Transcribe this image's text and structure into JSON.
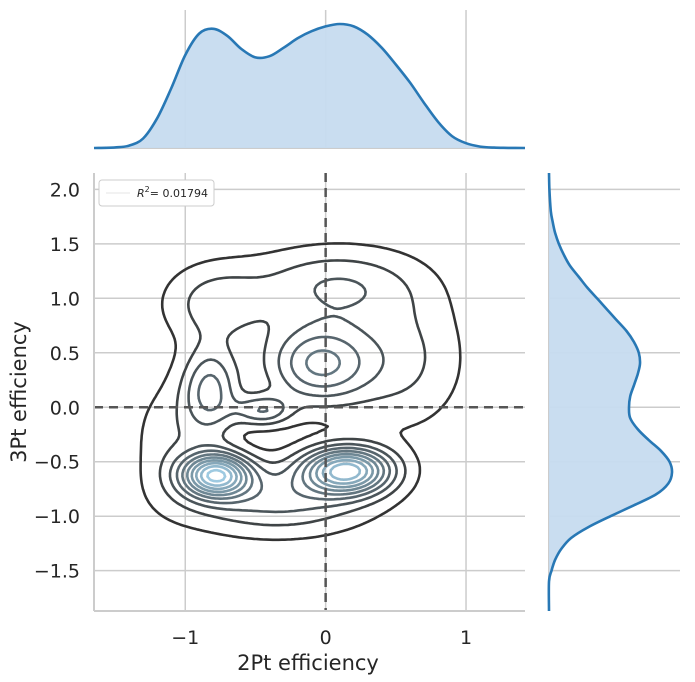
{
  "chart_data": {
    "type": "kde-joint",
    "xlabel": "2Pt efficiency",
    "ylabel": "3Pt efficiency",
    "xlim": [
      -1.65,
      1.42
    ],
    "ylim": [
      -1.87,
      2.15
    ],
    "xticks": [
      -1,
      0,
      1
    ],
    "xtick_labels": [
      "−1",
      "0",
      "1"
    ],
    "yticks": [
      -1.5,
      -1.0,
      -0.5,
      0.0,
      0.5,
      1.0,
      1.5,
      2.0
    ],
    "ytick_labels": [
      "−1.5",
      "−1.0",
      "−0.5",
      "0.0",
      "0.5",
      "1.0",
      "1.5",
      "2.0"
    ],
    "reference_lines": {
      "x": 0,
      "y": 0,
      "style": "dashed"
    },
    "legend": {
      "label_prefix": "R",
      "label_sup": "2",
      "label_value": "= 0.01794",
      "placement": "upper-left"
    },
    "colors": {
      "joint_light": "#9ecae1",
      "joint_dark": "#333333",
      "marginal_line": "#2878b5",
      "marginal_fill": "#c6dbef",
      "grid": "#cccccc",
      "refline": "#555555"
    },
    "grid": true,
    "kde_modes": [
      {
        "x": -0.78,
        "y": -0.62,
        "sx": 0.17,
        "sy": 0.14,
        "w": 1.0
      },
      {
        "x": 0.15,
        "y": -0.58,
        "sx": 0.22,
        "sy": 0.15,
        "w": 1.0
      },
      {
        "x": -0.82,
        "y": 0.15,
        "sx": 0.14,
        "sy": 0.28,
        "w": 0.45
      },
      {
        "x": -0.45,
        "y": -0.03,
        "sx": 0.14,
        "sy": 0.1,
        "w": 0.38
      },
      {
        "x": -0.05,
        "y": 0.4,
        "sx": 0.26,
        "sy": 0.26,
        "w": 0.55
      },
      {
        "x": -0.78,
        "y": 0.95,
        "sx": 0.26,
        "sy": 0.25,
        "w": 0.25
      },
      {
        "x": 0.05,
        "y": 1.12,
        "sx": 0.4,
        "sy": 0.24,
        "w": 0.3
      },
      {
        "x": 0.55,
        "y": 0.45,
        "sx": 0.3,
        "sy": 0.45,
        "w": 0.22
      },
      {
        "x": -0.35,
        "y": -0.85,
        "sx": 0.45,
        "sy": 0.22,
        "w": 0.35
      },
      {
        "x": -1.1,
        "y": -0.3,
        "sx": 0.2,
        "sy": 0.4,
        "w": 0.15
      }
    ],
    "kde_levels": 10,
    "marginal_x": {
      "x": [
        -1.65,
        -1.5,
        -1.4,
        -1.3,
        -1.2,
        -1.1,
        -1.0,
        -0.9,
        -0.8,
        -0.7,
        -0.6,
        -0.5,
        -0.4,
        -0.3,
        -0.2,
        -0.1,
        0.0,
        0.1,
        0.2,
        0.3,
        0.4,
        0.5,
        0.6,
        0.7,
        0.8,
        0.9,
        1.0,
        1.1,
        1.2,
        1.3,
        1.42
      ],
      "density": [
        0.0,
        0.005,
        0.02,
        0.08,
        0.25,
        0.5,
        0.78,
        0.96,
        1.0,
        0.94,
        0.83,
        0.76,
        0.77,
        0.84,
        0.92,
        0.98,
        1.02,
        1.04,
        1.02,
        0.95,
        0.84,
        0.7,
        0.55,
        0.38,
        0.22,
        0.1,
        0.04,
        0.012,
        0.003,
        0.001,
        0.0
      ]
    },
    "marginal_y": {
      "y": [
        -1.87,
        -1.6,
        -1.5,
        -1.4,
        -1.3,
        -1.2,
        -1.1,
        -1.0,
        -0.9,
        -0.8,
        -0.7,
        -0.6,
        -0.5,
        -0.4,
        -0.3,
        -0.2,
        -0.1,
        0.0,
        0.1,
        0.2,
        0.3,
        0.4,
        0.5,
        0.6,
        0.7,
        0.8,
        0.9,
        1.0,
        1.1,
        1.2,
        1.3,
        1.4,
        1.5,
        1.6,
        1.7,
        1.8,
        2.0,
        2.15
      ],
      "density": [
        0.0,
        0.0,
        0.02,
        0.05,
        0.1,
        0.18,
        0.32,
        0.5,
        0.69,
        0.87,
        0.97,
        1.0,
        0.98,
        0.91,
        0.81,
        0.72,
        0.66,
        0.65,
        0.66,
        0.69,
        0.72,
        0.74,
        0.73,
        0.69,
        0.63,
        0.55,
        0.47,
        0.39,
        0.31,
        0.24,
        0.17,
        0.12,
        0.08,
        0.05,
        0.03,
        0.015,
        0.003,
        0.0
      ]
    }
  }
}
